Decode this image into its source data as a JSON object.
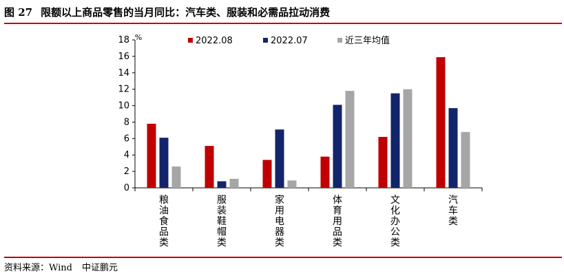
{
  "header": {
    "figure_number": "图 27",
    "title": "限额以上商品零售的当月同比：汽车类、服装和必需品拉动消费"
  },
  "source": {
    "label": "资料来源：Wind",
    "org": "中证鹏元"
  },
  "colors": {
    "rule": "#c00000",
    "s1": "#c00000",
    "s2": "#12256b",
    "s3": "#a6a6a6"
  },
  "chart_data": {
    "type": "bar",
    "ylabel": "%",
    "ylim": [
      0,
      18
    ],
    "yticks": [
      0,
      2,
      4,
      6,
      8,
      10,
      12,
      14,
      16,
      18
    ],
    "legend_position": "top",
    "grid": false,
    "categories": [
      "粮油食品类",
      "服装鞋帽类",
      "家用电器类",
      "体育用品类",
      "文化办公类",
      "汽车类"
    ],
    "series": [
      {
        "name": "2022.08",
        "values": [
          7.8,
          5.1,
          3.4,
          3.8,
          6.2,
          15.9
        ]
      },
      {
        "name": "2022.07",
        "values": [
          6.1,
          0.8,
          7.1,
          10.1,
          11.5,
          9.7
        ]
      },
      {
        "name": "近三年均值",
        "values": [
          2.6,
          1.1,
          0.9,
          11.8,
          12.0,
          6.8
        ]
      }
    ]
  }
}
